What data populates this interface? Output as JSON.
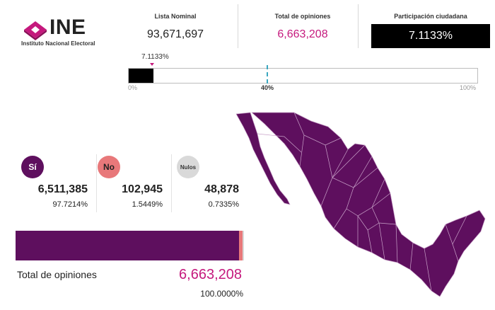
{
  "logo": {
    "name": "INE",
    "subtitle": "Instituto Nacional Electoral"
  },
  "header": {
    "lista_nominal": {
      "label": "Lista Nominal",
      "value": "93,671,697"
    },
    "total_opiniones": {
      "label": "Total de opiniones",
      "value": "6,663,208"
    },
    "participacion": {
      "label": "Participación ciudadana",
      "value": "7.1133%"
    }
  },
  "participation_bar": {
    "marker_label": "7.1133%",
    "fill_fraction": 0.071133,
    "threshold_label": "40%",
    "threshold_fraction": 0.4,
    "min_label": "0%",
    "max_label": "100%"
  },
  "results": [
    {
      "badge": "Sí",
      "count": "6,511,385",
      "percent": "97.7214%",
      "fraction": 0.977214,
      "color": "#5e0f5e"
    },
    {
      "badge": "No",
      "count": "102,945",
      "percent": "1.5449%",
      "fraction": 0.015449,
      "color": "#e8787a"
    },
    {
      "badge": "Nulos",
      "count": "48,878",
      "percent": "0.7335%",
      "fraction": 0.007335,
      "color": "#d9d9d9"
    }
  ],
  "summary": {
    "label": "Total de opiniones",
    "value": "6,663,208",
    "percent": "100.0000%"
  },
  "colors": {
    "primary_purple": "#5e0f5e",
    "magenta": "#c5197d",
    "threshold": "#3aa7c0"
  }
}
